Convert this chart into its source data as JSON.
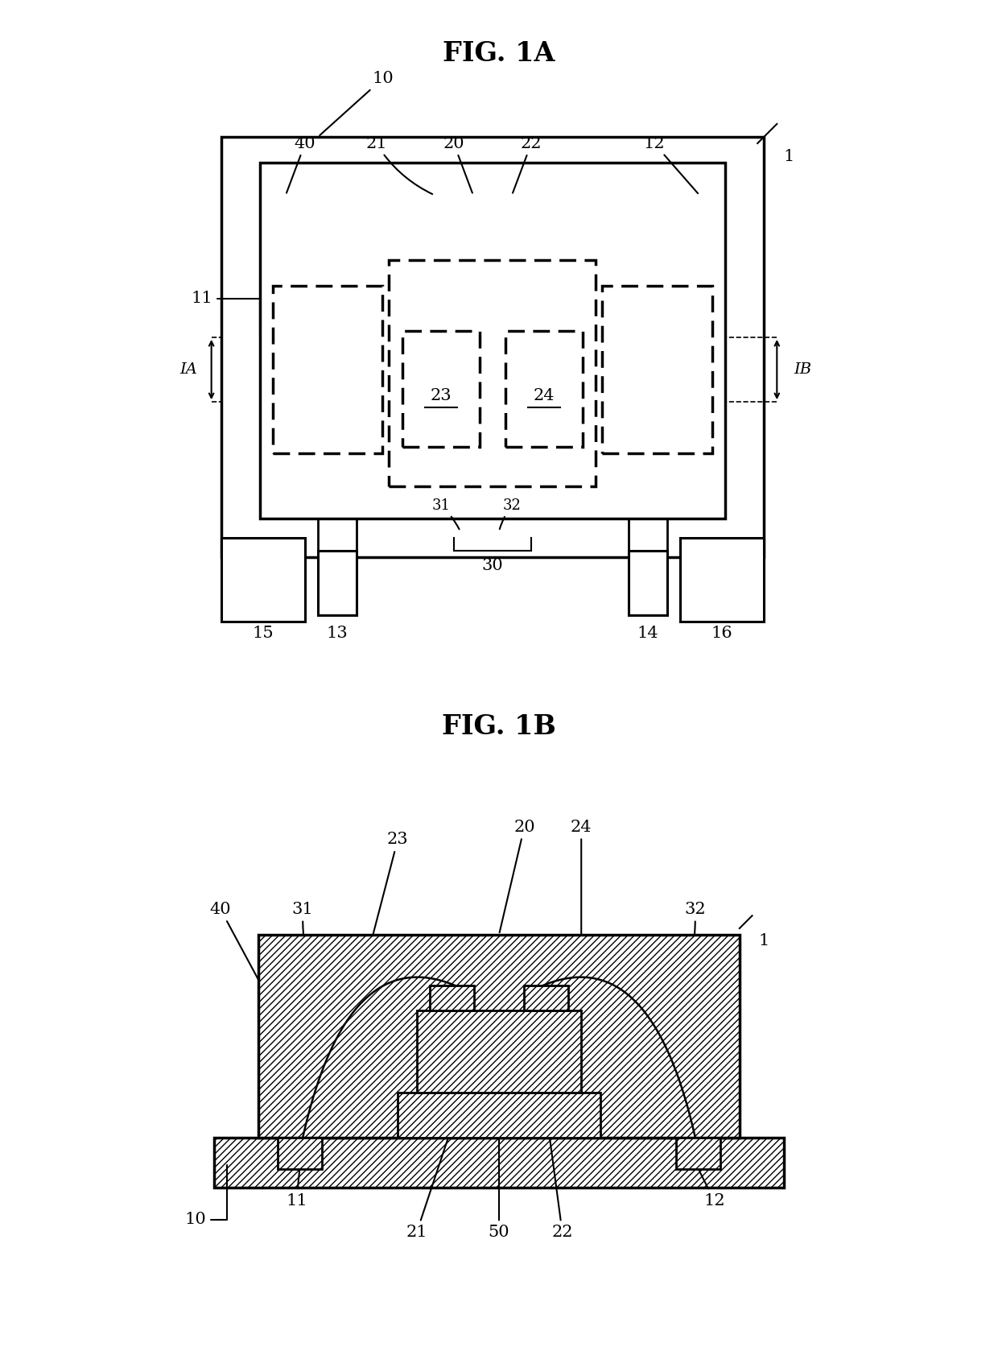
{
  "fig_title_A": "FIG. 1A",
  "fig_title_B": "FIG. 1B",
  "bg_color": "#ffffff",
  "line_color": "#000000",
  "label_fontsize": 15,
  "title_fontsize": 24
}
